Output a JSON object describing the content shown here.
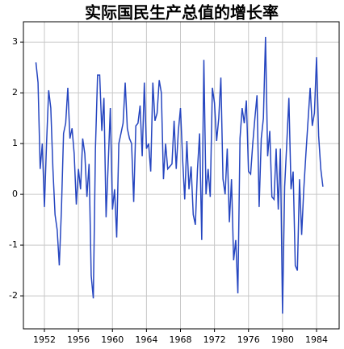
{
  "chart_data": {
    "type": "line",
    "title": "实际国民生产总值的增长率",
    "x": [
      1951,
      1951.25,
      1951.5,
      1951.75,
      1952,
      1952.25,
      1952.5,
      1952.75,
      1953,
      1953.25,
      1953.5,
      1953.75,
      1954,
      1954.25,
      1954.5,
      1954.75,
      1955,
      1955.25,
      1955.5,
      1955.75,
      1956,
      1956.25,
      1956.5,
      1956.75,
      1957,
      1957.25,
      1957.5,
      1957.75,
      1958,
      1958.25,
      1958.5,
      1958.75,
      1959,
      1959.25,
      1959.5,
      1959.75,
      1960,
      1960.25,
      1960.5,
      1960.75,
      1961,
      1961.25,
      1961.5,
      1961.75,
      1962,
      1962.25,
      1962.5,
      1962.75,
      1963,
      1963.25,
      1963.5,
      1963.75,
      1964,
      1964.25,
      1964.5,
      1964.75,
      1965,
      1965.25,
      1965.5,
      1965.75,
      1966,
      1966.25,
      1966.5,
      1966.75,
      1967,
      1967.25,
      1967.5,
      1967.75,
      1968,
      1968.25,
      1968.5,
      1968.75,
      1969,
      1969.25,
      1969.5,
      1969.75,
      1970,
      1970.25,
      1970.5,
      1970.75,
      1971,
      1971.25,
      1971.5,
      1971.75,
      1972,
      1972.25,
      1972.5,
      1972.75,
      1973,
      1973.25,
      1973.5,
      1973.75,
      1974,
      1974.25,
      1974.5,
      1974.75,
      1975,
      1975.25,
      1975.5,
      1975.75,
      1976,
      1976.25,
      1976.5,
      1976.75,
      1977,
      1977.25,
      1977.5,
      1977.75,
      1978,
      1978.25,
      1978.5,
      1978.75,
      1979,
      1979.25,
      1979.5,
      1979.75,
      1980,
      1980.25,
      1980.5,
      1980.75,
      1981,
      1981.25,
      1981.5,
      1981.75,
      1982,
      1982.25,
      1982.5,
      1982.75,
      1983,
      1983.25,
      1983.5,
      1983.75,
      1984,
      1984.25,
      1984.5,
      1984.75
    ],
    "values": [
      2.6,
      2.2,
      0.5,
      1.0,
      -0.25,
      1.0,
      2.05,
      1.7,
      0.5,
      -0.4,
      -0.7,
      -1.4,
      -0.3,
      1.2,
      1.4,
      2.1,
      1.1,
      1.3,
      0.8,
      -0.2,
      0.5,
      0.1,
      1.1,
      0.8,
      -0.05,
      0.6,
      -1.6,
      -2.05,
      0.9,
      2.35,
      2.35,
      1.25,
      1.9,
      -0.45,
      0.6,
      1.7,
      -0.3,
      0.1,
      -0.85,
      1.0,
      1.2,
      1.4,
      2.2,
      1.3,
      1.1,
      1.0,
      -0.15,
      1.35,
      1.4,
      1.75,
      0.75,
      2.2,
      0.9,
      1.0,
      0.45,
      2.2,
      1.45,
      1.6,
      2.25,
      2.0,
      0.3,
      1.0,
      0.5,
      0.55,
      0.6,
      1.45,
      0.5,
      1.25,
      1.7,
      0.7,
      -0.1,
      1.05,
      0.1,
      0.55,
      -0.4,
      -0.6,
      0.5,
      1.2,
      -0.9,
      2.65,
      0.0,
      0.5,
      -0.05,
      2.1,
      1.8,
      1.05,
      1.5,
      2.3,
      0.3,
      0.0,
      0.9,
      -0.55,
      0.3,
      -1.3,
      -0.9,
      -1.95,
      1.1,
      1.7,
      1.4,
      1.85,
      0.45,
      0.4,
      1.0,
      1.5,
      1.95,
      -0.25,
      1.1,
      1.5,
      3.1,
      0.75,
      1.25,
      -0.05,
      -0.1,
      0.9,
      -0.3,
      0.9,
      -2.35,
      0.15,
      1.0,
      1.9,
      0.1,
      0.45,
      -1.4,
      -1.5,
      0.3,
      -0.8,
      0.1,
      0.8,
      1.45,
      2.1,
      1.35,
      1.6,
      2.7,
      1.15,
      0.5,
      0.15
    ],
    "color": "#2646c0",
    "xlim": [
      1949.53,
      1986.66
    ],
    "xticks": [
      1952,
      1956,
      1960,
      1964,
      1968,
      1972,
      1976,
      1980,
      1984
    ],
    "ylim": [
      -2.65,
      3.4
    ],
    "yticks": [
      -2,
      -1,
      0,
      1,
      2,
      3
    ],
    "grid": true
  }
}
